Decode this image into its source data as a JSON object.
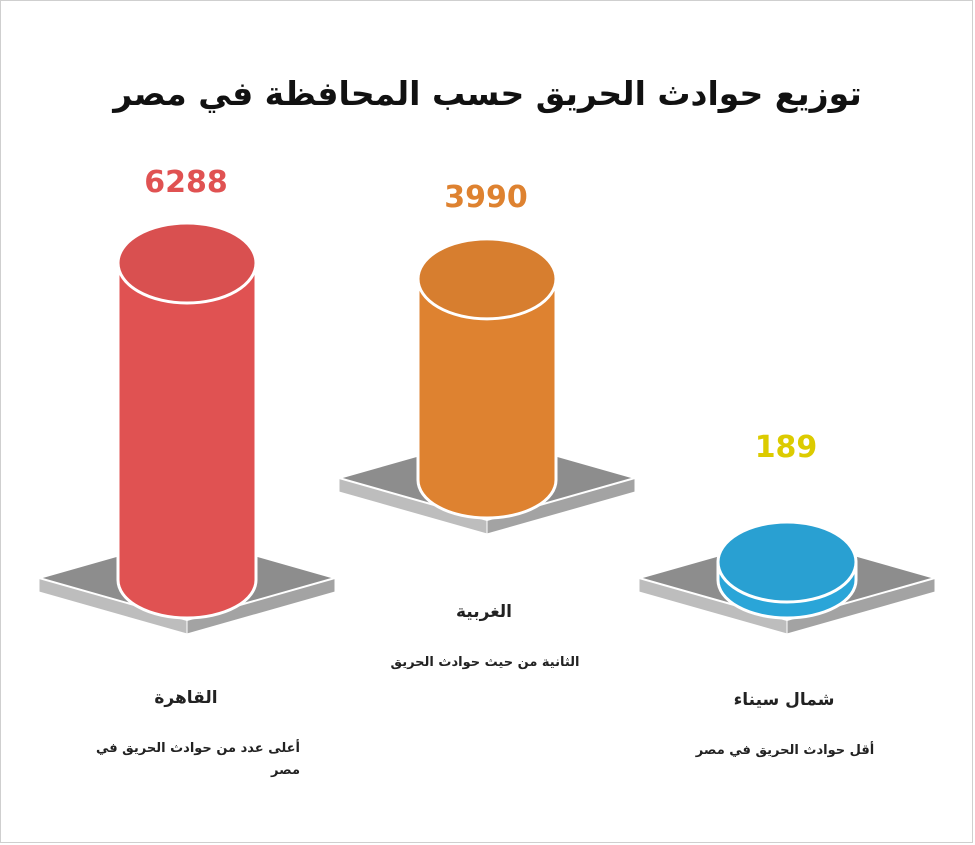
{
  "chart_data": {
    "type": "bar",
    "title": "توزيع حوادث الحريق حسب المحافظة في مصر",
    "categories": [
      "القاهرة",
      "الغربية",
      "شمال سيناء"
    ],
    "values": [
      6288,
      3990,
      189
    ],
    "value_labels": [
      "6288",
      "3990",
      "189"
    ],
    "descriptions": [
      "أعلى عدد من حوادث الحريق في مصر",
      "الثانية من حيث حوادث الحريق",
      "أقل حوادث الحريق في مصر"
    ],
    "colors": [
      "#e05252",
      "#de8230",
      "#2aa5d8"
    ],
    "label_colors": [
      "#e05252",
      "#de8230",
      "#dccb00"
    ]
  }
}
